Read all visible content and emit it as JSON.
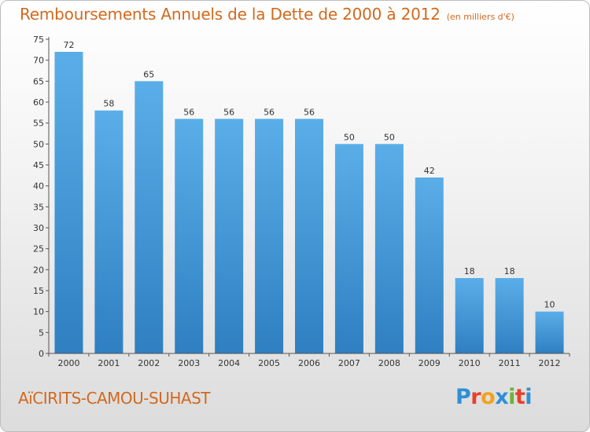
{
  "header": {
    "title": "Remboursements Annuels de la Dette de 2000 à 2012",
    "unit": "(en milliers d'€)"
  },
  "footer": {
    "commune": "AïCIRITS-CAMOU-SUHAST",
    "logo": [
      "P",
      "r",
      "o",
      "x",
      "i",
      "t",
      "i"
    ],
    "logo_colors": [
      "#2e8fd6",
      "#e8402a",
      "#f2a21d",
      "#2e8fd6",
      "#6bb33a",
      "#e8402a",
      "#2e8fd6"
    ]
  },
  "colors": {
    "bar_light": "#5aaee8",
    "bar_dark": "#2f7fc1",
    "text_accent": "#d2691e"
  },
  "chart_data": {
    "type": "bar",
    "categories": [
      "2000",
      "2001",
      "2002",
      "2003",
      "2004",
      "2005",
      "2006",
      "2007",
      "2008",
      "2009",
      "2010",
      "2011",
      "2012"
    ],
    "values": [
      72,
      58,
      65,
      56,
      56,
      56,
      56,
      50,
      50,
      42,
      18,
      18,
      10
    ],
    "ylim": [
      0,
      75
    ],
    "yticks": [
      0,
      5,
      10,
      15,
      20,
      25,
      30,
      35,
      40,
      45,
      50,
      55,
      60,
      65,
      70,
      75
    ],
    "grid": false,
    "legend": "none"
  }
}
